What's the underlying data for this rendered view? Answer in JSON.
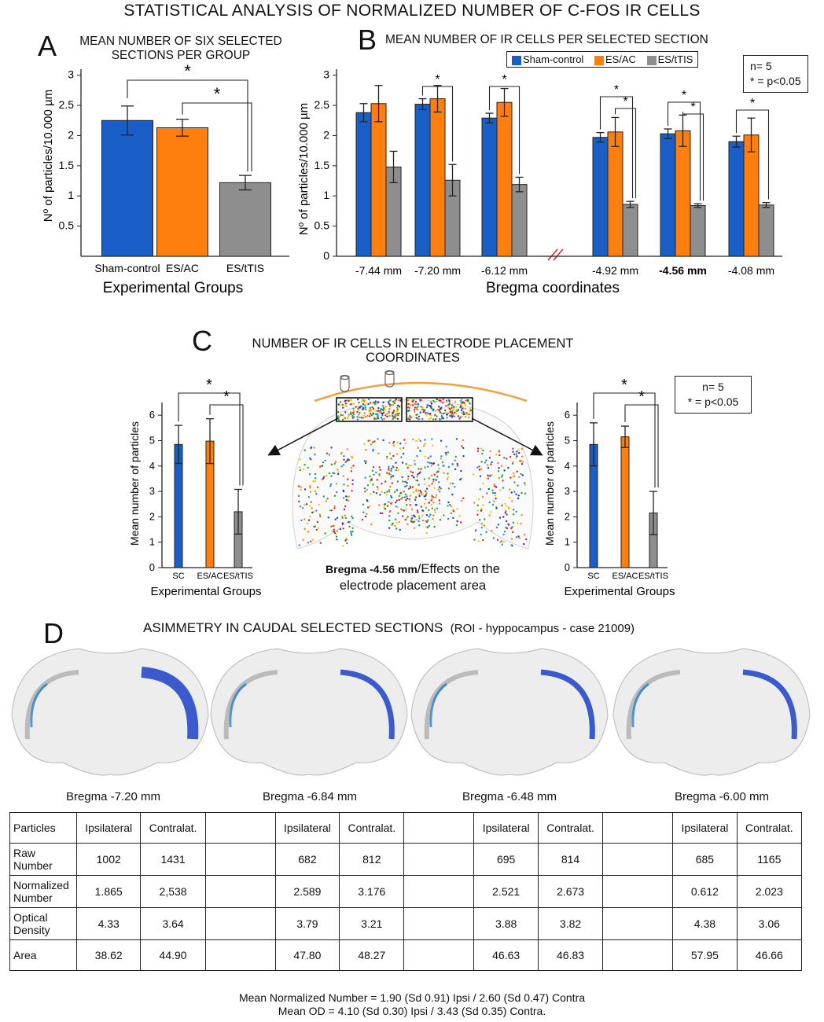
{
  "title": "STATISTICAL ANALYSIS OF NORMALIZED NUMBER OF C-FOS IR CELLS",
  "colors": {
    "blue": "#1a5fc7",
    "orange": "#ff7f0e",
    "gray": "#8e8e8e",
    "arc": "#f0a040"
  },
  "panelA": {
    "letter": "A",
    "subtitle_line1": "MEAN NUMBER OF SIX SELECTED",
    "subtitle_line2": "SECTIONS PER GROUP",
    "ylabel": "Nº of particles/10.000  µm",
    "xlabel": "Experimental Groups",
    "sig": [
      "*",
      "*"
    ]
  },
  "panelB": {
    "letter": "B",
    "subtitle": "MEAN NUMBER OF IR CELLS PER SELECTED SECTION",
    "ylabel": "Nº of particles/10.000  µm",
    "xlabel": "Bregma coordinates",
    "legend": [
      "Sham-control",
      "ES/AC",
      "ES/tTIS"
    ],
    "n_note": "n= 5",
    "p_note": "* = p<0.05",
    "sig": "*"
  },
  "panelC": {
    "letter": "C",
    "subtitle_line1": "NUMBER OF IR CELLS IN ELECTRODE PLACEMENT",
    "subtitle_line2": "COORDINATES",
    "ylabel": "Mean  number of particles",
    "xlabel": "Experimental Groups",
    "caption_bold": "Bregma -4.56 mm",
    "caption_rest": "/Effects on the",
    "caption_line2": "electrode placement area",
    "n_note": "n= 5",
    "p_note": "* = p<0.05",
    "sig": "*"
  },
  "panelD": {
    "letter": "D",
    "subtitle_main": "ASIMMETRY IN CAUDAL SELECTED SECTIONS",
    "subtitle_roi": "(ROI - hyppocampus -  case 21009)",
    "section_labels": [
      "Bregma -7.20 mm",
      "Bregma -6.84 mm",
      "Bregma -6.48 mm",
      "Bregma -6.00 mm"
    ],
    "table": {
      "header": [
        "Particles",
        "Ipsilateral",
        "Contralat.",
        "",
        "Ipsilateral",
        "Contralat.",
        "",
        "Ipsilateral",
        "Contralat.",
        "",
        "Ipsilateral",
        "Contralat."
      ],
      "rows": [
        {
          "label_line1": "Raw",
          "label_line2": "Number",
          "values": [
            "1002",
            "1431",
            "",
            "682",
            "812",
            "",
            "695",
            "814",
            "",
            "685",
            "1165"
          ]
        },
        {
          "label_line1": "Normalized",
          "label_line2": "Number",
          "values": [
            "1.865",
            "2,538",
            "",
            "2.589",
            "3.176",
            "",
            "2.521",
            "2.673",
            "",
            "0.612",
            "2.023"
          ]
        },
        {
          "label_line1": "Optical",
          "label_line2": "Density",
          "values": [
            "4.33",
            "3.64",
            "",
            "3.79",
            "3.21",
            "",
            "3.88",
            "3.82",
            "",
            "4.38",
            "3.06"
          ]
        },
        {
          "label_line1": "Area",
          "label_line2": "",
          "values": [
            "38.62",
            "44.90",
            "",
            "47.80",
            "48.27",
            "",
            "46.63",
            "46.83",
            "",
            "57.95",
            "46.66"
          ]
        }
      ]
    },
    "footer_line1": "Mean Normalized Number = 1.90 (Sd 0.91) Ipsi / 2.60 (Sd 0.47) Contra",
    "footer_line2": "Mean OD = 4.10 (Sd 0.30) Ipsi / 3.43 (Sd 0.35) Contra."
  },
  "chart_data": [
    {
      "id": "A",
      "type": "bar",
      "title": "MEAN NUMBER OF SIX SELECTED SECTIONS PER GROUP",
      "categories": [
        "Sham-control",
        "ES/AC",
        "ES/tTIS"
      ],
      "values": [
        2.25,
        2.13,
        1.22
      ],
      "errors": [
        0.24,
        0.14,
        0.12
      ],
      "ylim": [
        0,
        3.1
      ],
      "yticks": [
        0.5,
        1,
        1.5,
        2,
        2.5,
        3
      ],
      "ytick_labels": [
        "0.5",
        "1",
        "1.5",
        "2",
        "2.5",
        "3"
      ],
      "xlabel": "Experimental Groups",
      "ylabel": "Nº of particles/10.000  µm"
    },
    {
      "id": "B",
      "type": "bar",
      "title": "MEAN NUMBER OF IR CELLS PER SELECTED SECTION",
      "categories": [
        "-7.44 mm",
        "-7.20 mm",
        "-6.12 mm",
        "-4.92 mm",
        "-4.56 mm",
        "-4.08 mm"
      ],
      "series": [
        {
          "name": "Sham-control",
          "values": [
            2.38,
            2.52,
            2.29,
            1.97,
            2.03,
            1.9
          ],
          "errors": [
            0.15,
            0.09,
            0.08,
            0.08,
            0.08,
            0.09
          ]
        },
        {
          "name": "ES/AC",
          "values": [
            2.53,
            2.61,
            2.55,
            2.06,
            2.08,
            2.01
          ],
          "errors": [
            0.3,
            0.22,
            0.23,
            0.24,
            0.26,
            0.28
          ]
        },
        {
          "name": "ES/tTIS",
          "values": [
            1.48,
            1.26,
            1.19,
            0.86,
            0.84,
            0.85
          ],
          "errors": [
            0.26,
            0.26,
            0.12,
            0.05,
            0.03,
            0.04
          ]
        }
      ],
      "ylim": [
        0,
        3.1
      ],
      "yticks": [
        0,
        0.5,
        1,
        1.5,
        2,
        2.5,
        3
      ],
      "ytick_labels": [
        "0",
        "0.5",
        "1",
        "1.5",
        "2",
        "2.5",
        "3"
      ],
      "xlabel": "Bregma coordinates",
      "ylabel": "Nº of particles/10.000  µm"
    },
    {
      "id": "C-left",
      "type": "bar",
      "categories": [
        "SC",
        "ES/AC",
        "ES/tTIS"
      ],
      "values": [
        4.85,
        4.98,
        2.2
      ],
      "errors": [
        0.75,
        0.88,
        0.88
      ],
      "ylim": [
        0,
        6.5
      ],
      "yticks": [
        0,
        1,
        2,
        3,
        4,
        5,
        6
      ],
      "ytick_labels": [
        "0",
        "1",
        "2",
        "3",
        "4",
        "5",
        "6"
      ],
      "xlabel": "Experimental Groups",
      "ylabel": "Mean  number of particles"
    },
    {
      "id": "C-right",
      "type": "bar",
      "categories": [
        "SC",
        "ES/AC",
        "ES/tTIS"
      ],
      "values": [
        4.85,
        5.15,
        2.15
      ],
      "errors": [
        0.85,
        0.42,
        0.85
      ],
      "ylim": [
        0,
        6.5
      ],
      "yticks": [
        0,
        1,
        2,
        3,
        4,
        5,
        6
      ],
      "ytick_labels": [
        "0",
        "1",
        "2",
        "3",
        "4",
        "5",
        "6"
      ],
      "xlabel": "Experimental Groups",
      "ylabel": "Mean  number of particles"
    }
  ]
}
